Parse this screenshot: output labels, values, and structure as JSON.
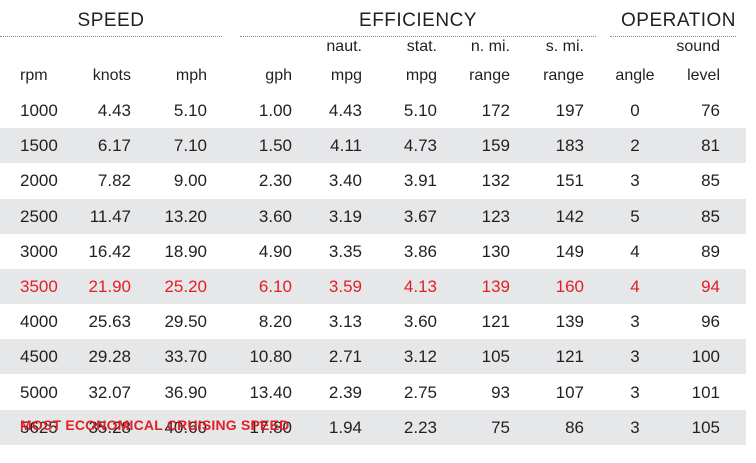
{
  "groups": [
    "SPEED",
    "EFFICIENCY",
    "OPERATION"
  ],
  "headers": [
    [
      "",
      "rpm"
    ],
    [
      "",
      "knots"
    ],
    [
      "",
      "mph"
    ],
    [
      "",
      "gph"
    ],
    [
      "naut.",
      "mpg"
    ],
    [
      "stat.",
      "mpg"
    ],
    [
      "n. mi.",
      "range"
    ],
    [
      "s. mi.",
      "range"
    ],
    [
      "",
      "angle"
    ],
    [
      "sound",
      "level"
    ]
  ],
  "rows": [
    [
      "1000",
      "4.43",
      "5.10",
      "1.00",
      "4.43",
      "5.10",
      "172",
      "197",
      "0",
      "76"
    ],
    [
      "1500",
      "6.17",
      "7.10",
      "1.50",
      "4.11",
      "4.73",
      "159",
      "183",
      "2",
      "81"
    ],
    [
      "2000",
      "7.82",
      "9.00",
      "2.30",
      "3.40",
      "3.91",
      "132",
      "151",
      "3",
      "85"
    ],
    [
      "2500",
      "11.47",
      "13.20",
      "3.60",
      "3.19",
      "3.67",
      "123",
      "142",
      "5",
      "85"
    ],
    [
      "3000",
      "16.42",
      "18.90",
      "4.90",
      "3.35",
      "3.86",
      "130",
      "149",
      "4",
      "89"
    ],
    [
      "3500",
      "21.90",
      "25.20",
      "6.10",
      "3.59",
      "4.13",
      "139",
      "160",
      "4",
      "94"
    ],
    [
      "4000",
      "25.63",
      "29.50",
      "8.20",
      "3.13",
      "3.60",
      "121",
      "139",
      "3",
      "96"
    ],
    [
      "4500",
      "29.28",
      "33.70",
      "10.80",
      "2.71",
      "3.12",
      "105",
      "121",
      "3",
      "100"
    ],
    [
      "5000",
      "32.07",
      "36.90",
      "13.40",
      "2.39",
      "2.75",
      "93",
      "107",
      "3",
      "101"
    ],
    [
      "5625",
      "35.28",
      "40.60",
      "17.80",
      "1.94",
      "2.23",
      "75",
      "86",
      "3",
      "105"
    ]
  ],
  "highlight_row": 5,
  "highlight_color": "#e31e24",
  "shade_color": "#e6e7e8",
  "footnote": "MOST ECONOMICAL CRUISING SPEED"
}
